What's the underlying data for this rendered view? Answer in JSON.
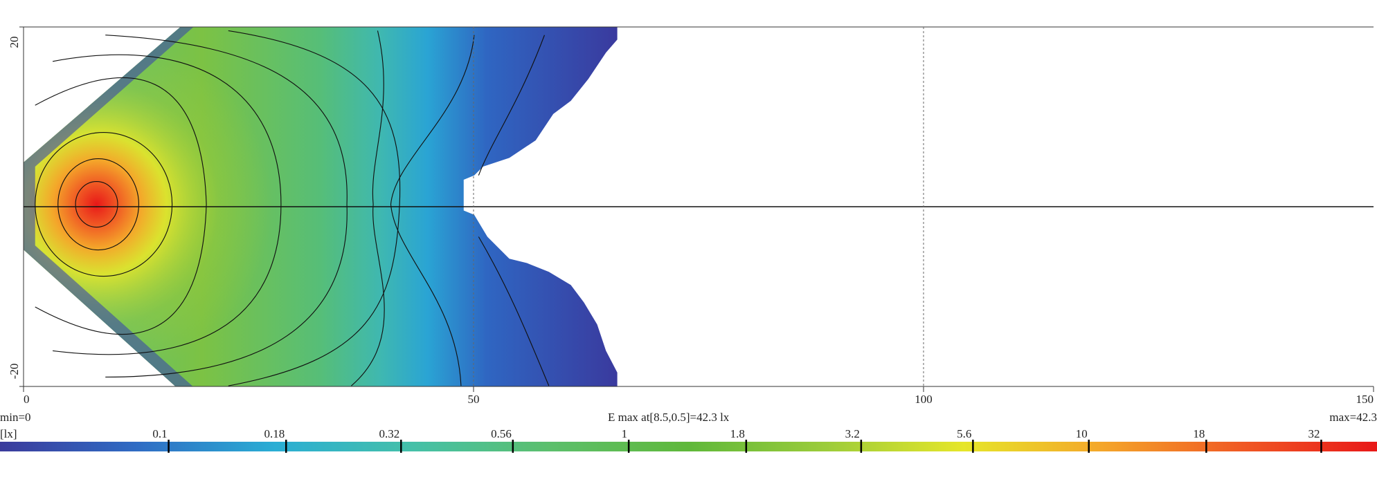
{
  "chart_data": {
    "type": "heatmap",
    "xlim": [
      0,
      150
    ],
    "xticks": [
      0,
      50,
      100,
      150
    ],
    "x_gridlines": [
      50,
      100
    ],
    "ylim": [
      -20,
      20
    ],
    "yticks": [
      -20,
      20
    ],
    "hline": 0,
    "min_label": "min=0",
    "max_label": "max=42.3",
    "unit_label": "[lx]",
    "annotation": "E max at[8.5,0.5]=42.3 lx",
    "colorbar": {
      "scale": "log",
      "lim": [
        0.043,
        42.3
      ],
      "ticks": [
        0.1,
        0.18,
        0.32,
        0.56,
        1,
        1.8,
        3.2,
        5.6,
        10,
        18,
        32
      ],
      "colors": [
        "#3b3b9c",
        "#2f6cc4",
        "#2aaed4",
        "#45c0a8",
        "#5cbf6c",
        "#5fb83a",
        "#9ccc3a",
        "#e6e62a",
        "#f4a62a",
        "#f05a24",
        "#e81818"
      ]
    }
  }
}
